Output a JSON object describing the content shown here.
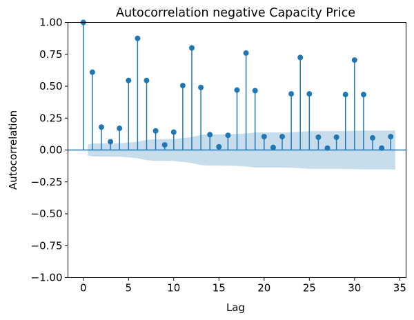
{
  "chart_data": {
    "type": "scatter",
    "subtype": "stem",
    "title": "Autocorrelation negative Capacity Price",
    "xlabel": "Lag",
    "ylabel": "Autocorrelation",
    "xlim": [
      -1.7,
      35.7
    ],
    "ylim": [
      -1.0,
      1.0
    ],
    "xticks": [
      0,
      5,
      10,
      15,
      20,
      25,
      30,
      35
    ],
    "xtick_labels": [
      "0",
      "5",
      "10",
      "15",
      "20",
      "25",
      "30",
      "35"
    ],
    "yticks": [
      -1.0,
      -0.75,
      -0.5,
      -0.25,
      0.0,
      0.25,
      0.5,
      0.75,
      1.0
    ],
    "ytick_labels": [
      "−1.00",
      "−0.75",
      "−0.50",
      "−0.25",
      "0.00",
      "0.25",
      "0.50",
      "0.75",
      "1.00"
    ],
    "grid": false,
    "series": [
      {
        "x": [
          0,
          1,
          2,
          3,
          4,
          5,
          6,
          7,
          8,
          9,
          10,
          11,
          12,
          13,
          14,
          15,
          16,
          17,
          18,
          19,
          20,
          21,
          22,
          23,
          24,
          25,
          26,
          27,
          28,
          29,
          30,
          31,
          32,
          33,
          34
        ],
        "values": [
          1.0,
          0.61,
          0.18,
          0.065,
          0.17,
          0.545,
          0.875,
          0.545,
          0.15,
          0.04,
          0.14,
          0.505,
          0.8,
          0.49,
          0.12,
          0.025,
          0.115,
          0.47,
          0.76,
          0.465,
          0.105,
          0.02,
          0.105,
          0.44,
          0.725,
          0.44,
          0.1,
          0.015,
          0.1,
          0.435,
          0.705,
          0.435,
          0.095,
          0.015,
          0.105
        ]
      }
    ],
    "confidence_band": {
      "x": [
        0.5,
        1,
        2,
        3,
        4,
        5,
        6,
        7,
        8,
        9,
        10,
        11,
        12,
        13,
        14,
        15,
        16,
        17,
        18,
        19,
        20,
        21,
        22,
        23,
        24,
        25,
        26,
        27,
        28,
        29,
        30,
        31,
        32,
        33,
        34,
        34.5
      ],
      "upper": [
        0.043,
        0.05,
        0.052,
        0.052,
        0.053,
        0.058,
        0.065,
        0.08,
        0.085,
        0.085,
        0.086,
        0.093,
        0.103,
        0.118,
        0.122,
        0.122,
        0.123,
        0.125,
        0.13,
        0.137,
        0.138,
        0.138,
        0.138,
        0.139,
        0.143,
        0.148,
        0.148,
        0.148,
        0.148,
        0.149,
        0.15,
        0.152,
        0.152,
        0.152,
        0.153,
        0.153
      ],
      "lower": [
        -0.043,
        -0.05,
        -0.052,
        -0.052,
        -0.053,
        -0.058,
        -0.065,
        -0.08,
        -0.085,
        -0.085,
        -0.086,
        -0.093,
        -0.103,
        -0.118,
        -0.122,
        -0.122,
        -0.123,
        -0.125,
        -0.13,
        -0.137,
        -0.138,
        -0.138,
        -0.138,
        -0.139,
        -0.143,
        -0.148,
        -0.148,
        -0.148,
        -0.148,
        -0.149,
        -0.15,
        -0.152,
        -0.152,
        -0.152,
        -0.153,
        -0.153
      ]
    },
    "colors": {
      "stem": "#1f77b4",
      "marker": "#1f77b4",
      "band": "#1f77b4",
      "band_opacity": 0.25,
      "axis": "#000000"
    }
  }
}
